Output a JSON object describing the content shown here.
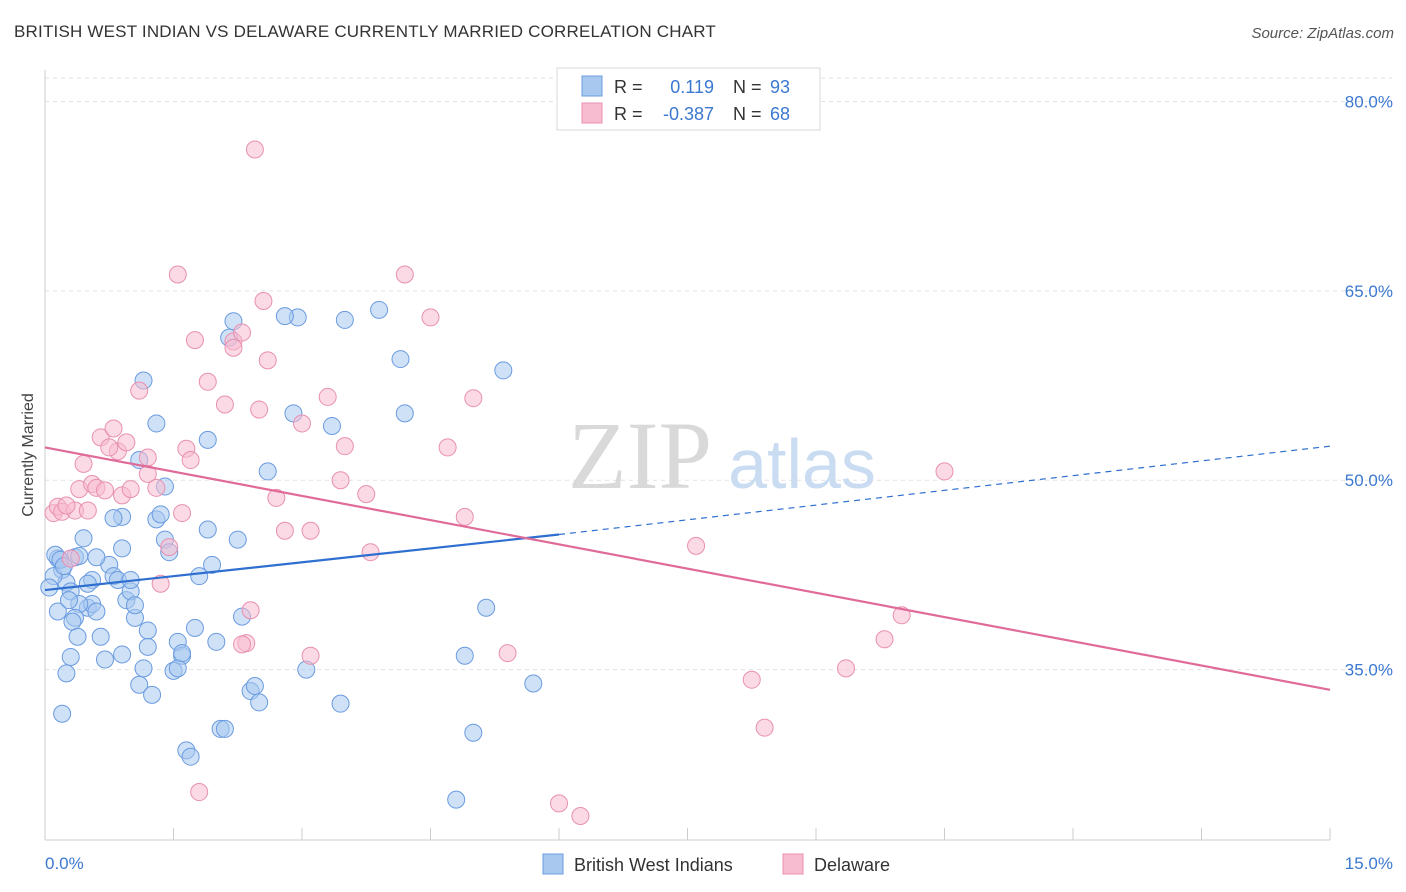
{
  "title": "BRITISH WEST INDIAN VS DELAWARE CURRENTLY MARRIED CORRELATION CHART",
  "source": "Source: ZipAtlas.com",
  "watermark": {
    "zip": "ZIP",
    "atlas": "atlas"
  },
  "legend": {
    "r_label": "R =",
    "n_label": "N =",
    "rows": [
      {
        "r": "0.119",
        "n": "93",
        "color": "#a8c8f0",
        "stroke": "#6a9be0"
      },
      {
        "r": "-0.387",
        "n": "68",
        "color": "#f7bcd0",
        "stroke": "#e890b0"
      }
    ]
  },
  "bottom_legend": [
    "British West Indians",
    "Delaware"
  ],
  "chart_data": {
    "type": "scatter",
    "title": "BRITISH WEST INDIAN VS DELAWARE CURRENTLY MARRIED CORRELATION CHART",
    "xlabel": "",
    "ylabel": "Currently Married",
    "xlim": [
      0,
      15
    ],
    "ylim": [
      21.5,
      82.5
    ],
    "x_tick_labels": [
      "0.0%",
      "15.0%"
    ],
    "y_ticks": [
      35,
      50,
      65,
      80
    ],
    "y_tick_labels": [
      "35.0%",
      "50.0%",
      "65.0%",
      "80.0%"
    ],
    "grid": true,
    "legend_position": "top-center",
    "series": [
      {
        "name": "British West Indians",
        "color": "#6a9be0",
        "fill": "#a8c8f0",
        "trend": {
          "x0": 0,
          "y0": 41.3,
          "x1": 6.0,
          "y1": 45.7,
          "dash_to_x": 15,
          "dash_to_y": 52.7
        },
        "points": [
          [
            0.15,
            43.8
          ],
          [
            0.2,
            42.9
          ],
          [
            0.25,
            41.9
          ],
          [
            0.3,
            41.2
          ],
          [
            0.35,
            43.9
          ],
          [
            0.4,
            44.0
          ],
          [
            0.45,
            45.4
          ],
          [
            0.5,
            39.9
          ],
          [
            0.55,
            40.2
          ],
          [
            0.6,
            39.6
          ],
          [
            0.65,
            37.6
          ],
          [
            0.7,
            35.8
          ],
          [
            0.75,
            43.3
          ],
          [
            0.8,
            42.4
          ],
          [
            0.85,
            42.1
          ],
          [
            0.9,
            36.2
          ],
          [
            0.95,
            40.5
          ],
          [
            1.0,
            41.2
          ],
          [
            1.05,
            39.1
          ],
          [
            1.1,
            33.8
          ],
          [
            1.15,
            35.1
          ],
          [
            1.2,
            38.1
          ],
          [
            1.25,
            33.0
          ],
          [
            1.3,
            46.9
          ],
          [
            1.35,
            47.3
          ],
          [
            1.4,
            45.3
          ],
          [
            1.45,
            44.3
          ],
          [
            1.5,
            34.9
          ],
          [
            1.55,
            37.2
          ],
          [
            1.6,
            36.1
          ],
          [
            1.65,
            28.6
          ],
          [
            1.7,
            28.1
          ],
          [
            1.75,
            38.3
          ],
          [
            1.8,
            42.4
          ],
          [
            1.9,
            46.1
          ],
          [
            1.95,
            43.3
          ],
          [
            2.0,
            37.2
          ],
          [
            2.05,
            30.3
          ],
          [
            2.1,
            30.3
          ],
          [
            2.15,
            61.3
          ],
          [
            2.2,
            62.6
          ],
          [
            2.25,
            45.3
          ],
          [
            2.3,
            39.2
          ],
          [
            2.4,
            33.3
          ],
          [
            2.45,
            33.7
          ],
          [
            2.5,
            32.4
          ],
          [
            2.6,
            50.7
          ],
          [
            2.9,
            55.3
          ],
          [
            2.95,
            62.9
          ],
          [
            3.05,
            35.0
          ],
          [
            3.35,
            54.3
          ],
          [
            3.45,
            32.3
          ],
          [
            3.5,
            62.7
          ],
          [
            3.9,
            63.5
          ],
          [
            4.15,
            59.6
          ],
          [
            4.2,
            55.3
          ],
          [
            4.9,
            36.1
          ],
          [
            5.0,
            30.0
          ],
          [
            5.15,
            39.9
          ],
          [
            5.35,
            58.7
          ],
          [
            5.7,
            33.9
          ],
          [
            4.8,
            24.7
          ],
          [
            2.8,
            63.0
          ],
          [
            1.15,
            57.9
          ],
          [
            1.3,
            54.5
          ],
          [
            1.9,
            53.2
          ],
          [
            1.1,
            51.6
          ],
          [
            1.4,
            49.5
          ],
          [
            0.9,
            47.1
          ],
          [
            0.8,
            47.0
          ],
          [
            0.6,
            43.9
          ],
          [
            0.55,
            42.1
          ],
          [
            0.5,
            41.8
          ],
          [
            0.4,
            40.2
          ],
          [
            0.35,
            39.1
          ],
          [
            0.3,
            36.0
          ],
          [
            0.25,
            34.7
          ],
          [
            0.2,
            31.5
          ],
          [
            0.9,
            44.6
          ],
          [
            1.0,
            42.1
          ],
          [
            1.05,
            40.1
          ],
          [
            1.2,
            36.8
          ],
          [
            1.55,
            35.1
          ],
          [
            1.6,
            36.3
          ],
          [
            0.15,
            39.6
          ],
          [
            0.1,
            42.4
          ],
          [
            0.05,
            41.5
          ],
          [
            0.12,
            44.1
          ],
          [
            0.18,
            43.7
          ],
          [
            0.22,
            43.2
          ],
          [
            0.28,
            40.5
          ],
          [
            0.32,
            38.8
          ],
          [
            0.38,
            37.6
          ]
        ]
      },
      {
        "name": "Delaware",
        "color": "#e890b0",
        "fill": "#f7bcd0",
        "trend": {
          "x0": 0,
          "y0": 52.6,
          "x1": 15,
          "y1": 33.4
        },
        "points": [
          [
            0.1,
            47.4
          ],
          [
            0.15,
            47.9
          ],
          [
            0.2,
            47.5
          ],
          [
            0.3,
            43.8
          ],
          [
            0.35,
            47.6
          ],
          [
            0.4,
            49.3
          ],
          [
            0.45,
            51.3
          ],
          [
            0.55,
            49.7
          ],
          [
            0.6,
            49.4
          ],
          [
            0.65,
            53.4
          ],
          [
            0.7,
            49.2
          ],
          [
            0.8,
            54.1
          ],
          [
            0.85,
            52.3
          ],
          [
            0.9,
            48.8
          ],
          [
            0.95,
            53.0
          ],
          [
            1.0,
            49.3
          ],
          [
            1.1,
            57.1
          ],
          [
            1.2,
            51.8
          ],
          [
            1.3,
            49.4
          ],
          [
            1.35,
            41.8
          ],
          [
            1.45,
            44.7
          ],
          [
            1.6,
            47.4
          ],
          [
            1.65,
            52.5
          ],
          [
            1.7,
            51.6
          ],
          [
            1.8,
            25.3
          ],
          [
            1.9,
            57.8
          ],
          [
            2.1,
            56.0
          ],
          [
            2.2,
            61.0
          ],
          [
            2.3,
            61.7
          ],
          [
            2.35,
            37.1
          ],
          [
            2.4,
            39.7
          ],
          [
            2.5,
            55.6
          ],
          [
            2.6,
            59.5
          ],
          [
            2.7,
            48.6
          ],
          [
            2.8,
            46.0
          ],
          [
            3.0,
            54.5
          ],
          [
            3.1,
            46.0
          ],
          [
            3.3,
            56.6
          ],
          [
            3.45,
            50.0
          ],
          [
            3.5,
            52.7
          ],
          [
            3.75,
            48.9
          ],
          [
            3.8,
            44.3
          ],
          [
            4.2,
            66.3
          ],
          [
            4.5,
            62.9
          ],
          [
            4.7,
            52.6
          ],
          [
            4.9,
            47.1
          ],
          [
            5.0,
            56.5
          ],
          [
            5.4,
            36.3
          ],
          [
            6.0,
            24.4
          ],
          [
            6.25,
            23.4
          ],
          [
            7.6,
            44.8
          ],
          [
            8.25,
            34.2
          ],
          [
            8.4,
            30.4
          ],
          [
            9.35,
            35.1
          ],
          [
            9.8,
            37.4
          ],
          [
            10.0,
            39.3
          ],
          [
            10.5,
            50.7
          ],
          [
            2.45,
            76.2
          ],
          [
            1.55,
            66.3
          ],
          [
            2.55,
            64.2
          ],
          [
            1.75,
            61.1
          ],
          [
            2.2,
            60.5
          ],
          [
            3.1,
            36.1
          ],
          [
            2.3,
            37.0
          ],
          [
            1.2,
            50.5
          ],
          [
            0.75,
            52.6
          ],
          [
            0.5,
            47.6
          ],
          [
            0.25,
            48.0
          ]
        ]
      }
    ]
  }
}
